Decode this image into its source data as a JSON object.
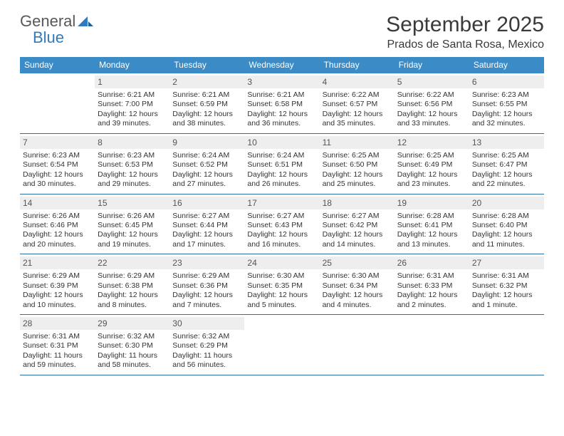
{
  "brand": {
    "line1": "General",
    "line2": "Blue"
  },
  "colors": {
    "header_bg": "#3b8bc7",
    "header_text": "#ffffff",
    "daynum_bg": "#eeeeee",
    "rule": "#2f6fa3",
    "logo_gray": "#585858",
    "logo_blue": "#2f7bbf",
    "body_text": "#333333"
  },
  "title": "September 2025",
  "location": "Prados de Santa Rosa, Mexico",
  "weekdays": [
    "Sunday",
    "Monday",
    "Tuesday",
    "Wednesday",
    "Thursday",
    "Friday",
    "Saturday"
  ],
  "weeks": [
    [
      null,
      {
        "n": "1",
        "sr": "Sunrise: 6:21 AM",
        "ss": "Sunset: 7:00 PM",
        "d1": "Daylight: 12 hours",
        "d2": "and 39 minutes."
      },
      {
        "n": "2",
        "sr": "Sunrise: 6:21 AM",
        "ss": "Sunset: 6:59 PM",
        "d1": "Daylight: 12 hours",
        "d2": "and 38 minutes."
      },
      {
        "n": "3",
        "sr": "Sunrise: 6:21 AM",
        "ss": "Sunset: 6:58 PM",
        "d1": "Daylight: 12 hours",
        "d2": "and 36 minutes."
      },
      {
        "n": "4",
        "sr": "Sunrise: 6:22 AM",
        "ss": "Sunset: 6:57 PM",
        "d1": "Daylight: 12 hours",
        "d2": "and 35 minutes."
      },
      {
        "n": "5",
        "sr": "Sunrise: 6:22 AM",
        "ss": "Sunset: 6:56 PM",
        "d1": "Daylight: 12 hours",
        "d2": "and 33 minutes."
      },
      {
        "n": "6",
        "sr": "Sunrise: 6:23 AM",
        "ss": "Sunset: 6:55 PM",
        "d1": "Daylight: 12 hours",
        "d2": "and 32 minutes."
      }
    ],
    [
      {
        "n": "7",
        "sr": "Sunrise: 6:23 AM",
        "ss": "Sunset: 6:54 PM",
        "d1": "Daylight: 12 hours",
        "d2": "and 30 minutes."
      },
      {
        "n": "8",
        "sr": "Sunrise: 6:23 AM",
        "ss": "Sunset: 6:53 PM",
        "d1": "Daylight: 12 hours",
        "d2": "and 29 minutes."
      },
      {
        "n": "9",
        "sr": "Sunrise: 6:24 AM",
        "ss": "Sunset: 6:52 PM",
        "d1": "Daylight: 12 hours",
        "d2": "and 27 minutes."
      },
      {
        "n": "10",
        "sr": "Sunrise: 6:24 AM",
        "ss": "Sunset: 6:51 PM",
        "d1": "Daylight: 12 hours",
        "d2": "and 26 minutes."
      },
      {
        "n": "11",
        "sr": "Sunrise: 6:25 AM",
        "ss": "Sunset: 6:50 PM",
        "d1": "Daylight: 12 hours",
        "d2": "and 25 minutes."
      },
      {
        "n": "12",
        "sr": "Sunrise: 6:25 AM",
        "ss": "Sunset: 6:49 PM",
        "d1": "Daylight: 12 hours",
        "d2": "and 23 minutes."
      },
      {
        "n": "13",
        "sr": "Sunrise: 6:25 AM",
        "ss": "Sunset: 6:47 PM",
        "d1": "Daylight: 12 hours",
        "d2": "and 22 minutes."
      }
    ],
    [
      {
        "n": "14",
        "sr": "Sunrise: 6:26 AM",
        "ss": "Sunset: 6:46 PM",
        "d1": "Daylight: 12 hours",
        "d2": "and 20 minutes."
      },
      {
        "n": "15",
        "sr": "Sunrise: 6:26 AM",
        "ss": "Sunset: 6:45 PM",
        "d1": "Daylight: 12 hours",
        "d2": "and 19 minutes."
      },
      {
        "n": "16",
        "sr": "Sunrise: 6:27 AM",
        "ss": "Sunset: 6:44 PM",
        "d1": "Daylight: 12 hours",
        "d2": "and 17 minutes."
      },
      {
        "n": "17",
        "sr": "Sunrise: 6:27 AM",
        "ss": "Sunset: 6:43 PM",
        "d1": "Daylight: 12 hours",
        "d2": "and 16 minutes."
      },
      {
        "n": "18",
        "sr": "Sunrise: 6:27 AM",
        "ss": "Sunset: 6:42 PM",
        "d1": "Daylight: 12 hours",
        "d2": "and 14 minutes."
      },
      {
        "n": "19",
        "sr": "Sunrise: 6:28 AM",
        "ss": "Sunset: 6:41 PM",
        "d1": "Daylight: 12 hours",
        "d2": "and 13 minutes."
      },
      {
        "n": "20",
        "sr": "Sunrise: 6:28 AM",
        "ss": "Sunset: 6:40 PM",
        "d1": "Daylight: 12 hours",
        "d2": "and 11 minutes."
      }
    ],
    [
      {
        "n": "21",
        "sr": "Sunrise: 6:29 AM",
        "ss": "Sunset: 6:39 PM",
        "d1": "Daylight: 12 hours",
        "d2": "and 10 minutes."
      },
      {
        "n": "22",
        "sr": "Sunrise: 6:29 AM",
        "ss": "Sunset: 6:38 PM",
        "d1": "Daylight: 12 hours",
        "d2": "and 8 minutes."
      },
      {
        "n": "23",
        "sr": "Sunrise: 6:29 AM",
        "ss": "Sunset: 6:36 PM",
        "d1": "Daylight: 12 hours",
        "d2": "and 7 minutes."
      },
      {
        "n": "24",
        "sr": "Sunrise: 6:30 AM",
        "ss": "Sunset: 6:35 PM",
        "d1": "Daylight: 12 hours",
        "d2": "and 5 minutes."
      },
      {
        "n": "25",
        "sr": "Sunrise: 6:30 AM",
        "ss": "Sunset: 6:34 PM",
        "d1": "Daylight: 12 hours",
        "d2": "and 4 minutes."
      },
      {
        "n": "26",
        "sr": "Sunrise: 6:31 AM",
        "ss": "Sunset: 6:33 PM",
        "d1": "Daylight: 12 hours",
        "d2": "and 2 minutes."
      },
      {
        "n": "27",
        "sr": "Sunrise: 6:31 AM",
        "ss": "Sunset: 6:32 PM",
        "d1": "Daylight: 12 hours",
        "d2": "and 1 minute."
      }
    ],
    [
      {
        "n": "28",
        "sr": "Sunrise: 6:31 AM",
        "ss": "Sunset: 6:31 PM",
        "d1": "Daylight: 11 hours",
        "d2": "and 59 minutes."
      },
      {
        "n": "29",
        "sr": "Sunrise: 6:32 AM",
        "ss": "Sunset: 6:30 PM",
        "d1": "Daylight: 11 hours",
        "d2": "and 58 minutes."
      },
      {
        "n": "30",
        "sr": "Sunrise: 6:32 AM",
        "ss": "Sunset: 6:29 PM",
        "d1": "Daylight: 11 hours",
        "d2": "and 56 minutes."
      },
      null,
      null,
      null,
      null
    ]
  ]
}
